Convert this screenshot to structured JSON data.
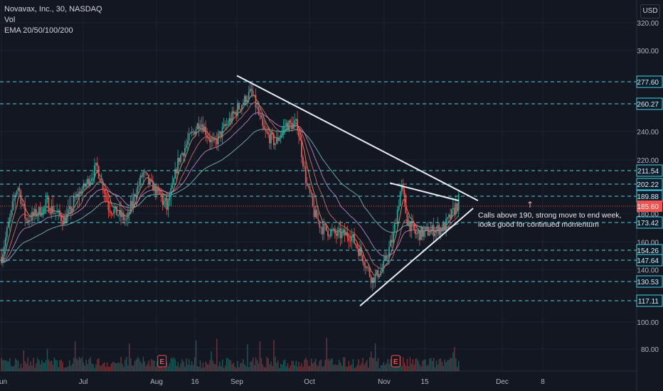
{
  "chart_data": {
    "type": "candlestick",
    "symbol_line": "Novavax, Inc., 30, NASDAQ",
    "volume_label": "Vol",
    "indicator_label": "EMA 20/50/100/200",
    "currency": "USD",
    "y_axis_ticks": [
      320,
      300,
      240,
      220,
      180,
      160,
      140,
      100,
      80
    ],
    "y_axis_tick_labels": [
      "320.00",
      "300.00",
      "240.00",
      "220.00",
      "180.00",
      "160.00",
      "140.00",
      "100.00",
      "80.00"
    ],
    "x_axis_labels": [
      "Jun",
      "Jul",
      "Aug",
      "16",
      "Sep",
      "Oct",
      "Nov",
      "15",
      "Dec",
      "8"
    ],
    "x_axis_dates": [
      "2021-06-01",
      "2021-07-01",
      "2021-08-02",
      "2021-08-16",
      "2021-09-01",
      "2021-10-01",
      "2021-11-01",
      "2021-11-15",
      "2021-12-01",
      "2021-12-08"
    ],
    "price_path": [
      {
        "date": "2021-06-01",
        "close": 150
      },
      {
        "date": "2021-06-07",
        "close": 200
      },
      {
        "date": "2021-06-10",
        "close": 175
      },
      {
        "date": "2021-06-18",
        "close": 186
      },
      {
        "date": "2021-06-24",
        "close": 175
      },
      {
        "date": "2021-07-07",
        "close": 215
      },
      {
        "date": "2021-07-12",
        "close": 185
      },
      {
        "date": "2021-07-20",
        "close": 175
      },
      {
        "date": "2021-07-27",
        "close": 210
      },
      {
        "date": "2021-08-02",
        "close": 195
      },
      {
        "date": "2021-08-06",
        "close": 183
      },
      {
        "date": "2021-08-10",
        "close": 220
      },
      {
        "date": "2021-08-14",
        "close": 235
      },
      {
        "date": "2021-08-18",
        "close": 248
      },
      {
        "date": "2021-08-23",
        "close": 230
      },
      {
        "date": "2021-08-28",
        "close": 245
      },
      {
        "date": "2021-09-02",
        "close": 258
      },
      {
        "date": "2021-09-07",
        "close": 270
      },
      {
        "date": "2021-09-12",
        "close": 240
      },
      {
        "date": "2021-09-17",
        "close": 232
      },
      {
        "date": "2021-09-21",
        "close": 245
      },
      {
        "date": "2021-09-26",
        "close": 245
      },
      {
        "date": "2021-09-30",
        "close": 200
      },
      {
        "date": "2021-10-03",
        "close": 180
      },
      {
        "date": "2021-10-06",
        "close": 170
      },
      {
        "date": "2021-10-12",
        "close": 165
      },
      {
        "date": "2021-10-18",
        "close": 165
      },
      {
        "date": "2021-10-23",
        "close": 150
      },
      {
        "date": "2021-10-27",
        "close": 132
      },
      {
        "date": "2021-10-31",
        "close": 140
      },
      {
        "date": "2021-11-04",
        "close": 163
      },
      {
        "date": "2021-11-07",
        "close": 200
      },
      {
        "date": "2021-11-09",
        "close": 175
      },
      {
        "date": "2021-11-12",
        "close": 165
      },
      {
        "date": "2021-11-19",
        "close": 170
      },
      {
        "date": "2021-11-22",
        "close": 188
      }
    ],
    "last_price": 185.6,
    "last_price_label": "185.60",
    "horizontal_levels": [
      {
        "value": 277.6,
        "label": "277.60"
      },
      {
        "value": 260.27,
        "label": "260.27"
      },
      {
        "value": 211.54,
        "label": "211.54"
      },
      {
        "value": 202.22,
        "label": "202.22"
      },
      {
        "value": 189.88,
        "label": "189.88"
      },
      {
        "value": 173.42,
        "label": "173.42"
      },
      {
        "value": 154.26,
        "label": "154.26"
      },
      {
        "value": 147.64,
        "label": "147.64"
      },
      {
        "value": 130.53,
        "label": "130.53"
      },
      {
        "value": 117.11,
        "label": "117.11"
      }
    ],
    "trendlines": [
      {
        "name": "upper",
        "from": {
          "date": "2021-09-01",
          "value": 282
        },
        "to": {
          "date": "2021-11-26",
          "value": 188
        }
      },
      {
        "name": "lower",
        "from": {
          "date": "2021-10-22",
          "value": 113
        },
        "to": {
          "date": "2021-11-25",
          "value": 184
        }
      },
      {
        "name": "short",
        "from": {
          "date": "2021-11-03",
          "value": 203
        },
        "to": {
          "date": "2021-11-22",
          "value": 188
        }
      }
    ],
    "earnings_markers": [
      {
        "date": "2021-08-04",
        "label": "E"
      },
      {
        "date": "2021-11-05",
        "label": "E"
      }
    ],
    "annotation": {
      "arrow": "↑",
      "lines": [
        "Calls above 190, strong move to end week,",
        "looks good for continued momentum"
      ]
    },
    "colors": {
      "background": "#131722",
      "up": "#26a69a",
      "down": "#ef5350",
      "levels": "#4dd0e1",
      "trendline": "#e9ecf2",
      "price_badge": "#ef5350",
      "level_badge": "#0c1d2b"
    }
  }
}
